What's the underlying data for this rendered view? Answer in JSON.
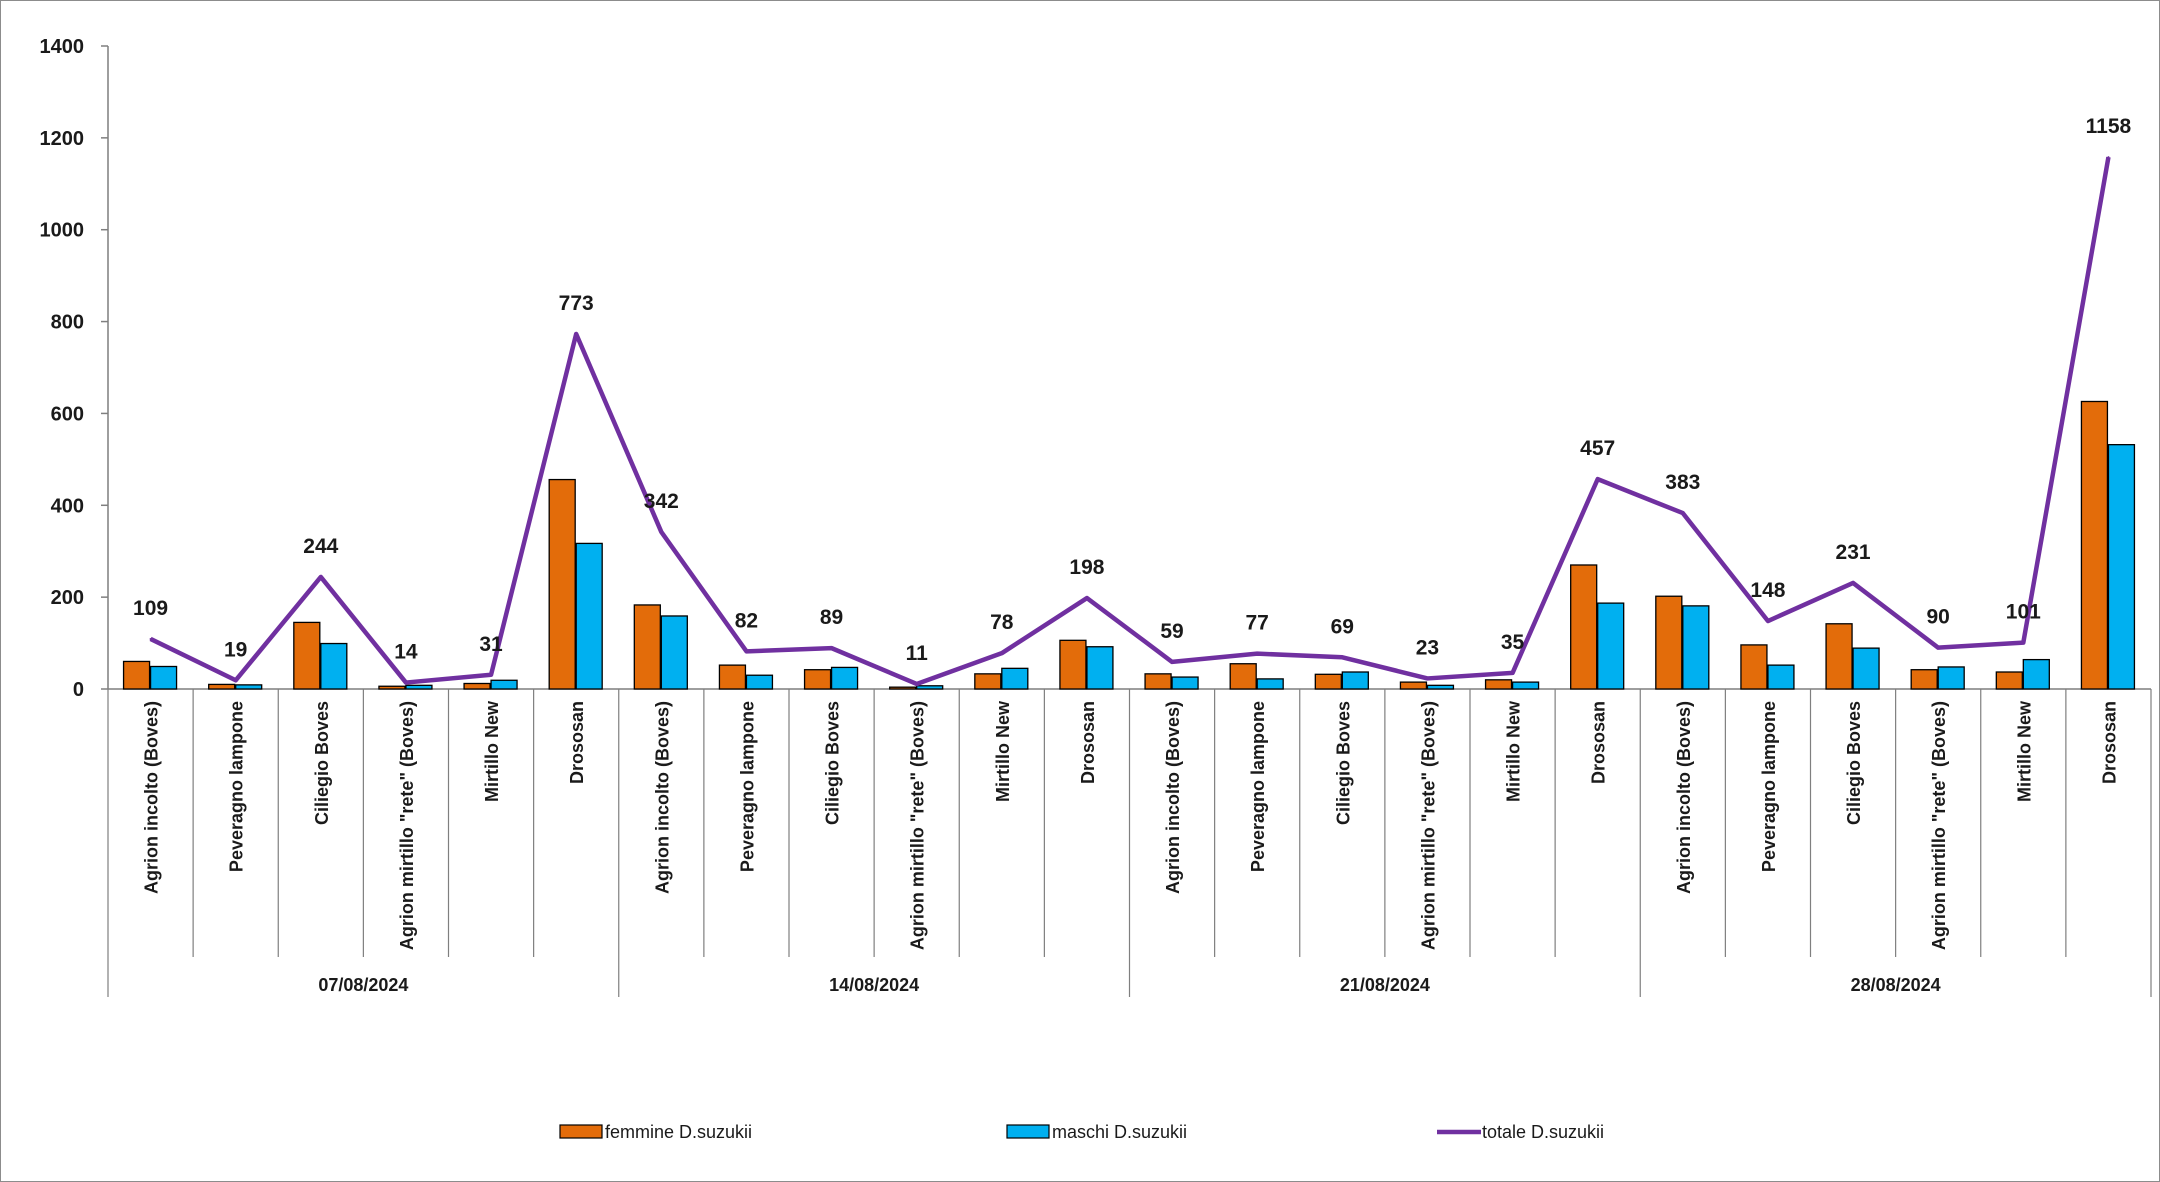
{
  "chart_data": {
    "type": "bar",
    "title": "",
    "xlabel": "",
    "ylabel": "",
    "ylim": [
      0,
      1400
    ],
    "yticks": [
      0,
      200,
      400,
      600,
      800,
      1000,
      1200,
      1400
    ],
    "grid": false,
    "legend_position": "bottom",
    "groups": [
      {
        "label": "07/08/2024",
        "categories": [
          "Agrion incolto (Boves)",
          "Peveragno lampone",
          "Ciliegio Boves",
          "Agrion mirtillo \"rete\" (Boves)",
          "Mirtillo New",
          "Drososan"
        ]
      },
      {
        "label": "14/08/2024",
        "categories": [
          "Agrion incolto (Boves)",
          "Peveragno lampone",
          "Ciliegio Boves",
          "Agrion mirtillo \"rete\" (Boves)",
          "Mirtillo New",
          "Drososan"
        ]
      },
      {
        "label": "21/08/2024",
        "categories": [
          "Agrion incolto (Boves)",
          "Peveragno lampone",
          "Ciliegio Boves",
          "Agrion mirtillo \"rete\" (Boves)",
          "Mirtillo New",
          "Drososan"
        ]
      },
      {
        "label": "28/08/2024",
        "categories": [
          "Agrion incolto (Boves)",
          "Peveragno lampone",
          "Ciliegio Boves",
          "Agrion mirtillo \"rete\" (Boves)",
          "Mirtillo New",
          "Drososan"
        ]
      }
    ],
    "series": [
      {
        "name": "femmine D.suzukii",
        "kind": "bar",
        "color": "#e36c0a",
        "values": [
          60,
          10,
          145,
          6,
          12,
          456,
          183,
          52,
          42,
          4,
          33,
          106,
          33,
          55,
          32,
          15,
          20,
          270,
          202,
          96,
          142,
          42,
          37,
          626
        ]
      },
      {
        "name": "maschi D.suzukii",
        "kind": "bar",
        "color": "#00b0f0",
        "values": [
          49,
          9,
          99,
          8,
          19,
          317,
          159,
          30,
          47,
          7,
          45,
          92,
          26,
          22,
          37,
          8,
          15,
          187,
          181,
          52,
          89,
          48,
          64,
          532
        ]
      },
      {
        "name": "totale D.suzukii",
        "kind": "line",
        "color": "#7030a0",
        "values": [
          109,
          19,
          244,
          14,
          31,
          773,
          342,
          82,
          89,
          11,
          78,
          198,
          59,
          77,
          69,
          23,
          35,
          457,
          383,
          148,
          231,
          90,
          101,
          1158
        ]
      }
    ]
  }
}
